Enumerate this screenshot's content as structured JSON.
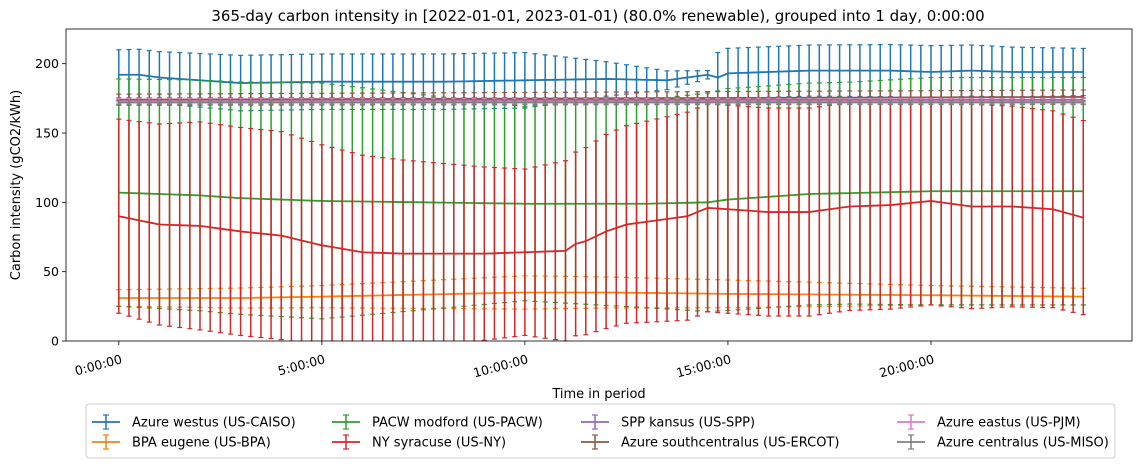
{
  "chart_data": {
    "type": "line",
    "title": "365-day carbon intensity in [2022-01-01, 2023-01-01) (80.0% renewable), grouped into 1 day, 0:00:00",
    "xlabel": "Time in period",
    "ylabel": "Carbon intensity (gCO2/kWh)",
    "xlim_hours": [
      -1.3,
      24.95
    ],
    "ylim": [
      0,
      225
    ],
    "x_tick_labels": [
      "0:00:00",
      "5:00:00",
      "10:00:00",
      "15:00:00",
      "20:00:00"
    ],
    "x_tick_hours": [
      0,
      5,
      10,
      15,
      20
    ],
    "y_ticks": [
      0,
      50,
      100,
      150,
      200
    ],
    "error_bars": true,
    "legend_location": "below plot",
    "x_hours_step": 0.25,
    "series": [
      {
        "name": "Azure westus (US-CAISO)",
        "color": "#1f77b4",
        "anchors": [
          [
            0,
            192
          ],
          [
            0.5,
            192
          ],
          [
            1,
            190
          ],
          [
            1.5,
            189
          ],
          [
            3,
            186
          ],
          [
            5,
            187
          ],
          [
            8,
            187
          ],
          [
            10,
            188
          ],
          [
            12,
            189
          ],
          [
            13.5,
            188
          ],
          [
            14.5,
            192
          ],
          [
            14.75,
            190
          ],
          [
            15,
            193
          ],
          [
            17,
            195
          ],
          [
            19,
            195
          ],
          [
            20,
            194
          ],
          [
            21,
            195
          ],
          [
            22,
            194
          ],
          [
            23,
            194
          ],
          [
            23.75,
            194
          ]
        ],
        "err_anchors": [
          [
            0,
            18
          ],
          [
            3,
            20
          ],
          [
            10,
            20
          ],
          [
            14.5,
            3
          ],
          [
            14.75,
            18
          ],
          [
            20,
            19
          ],
          [
            23.75,
            17
          ]
        ]
      },
      {
        "name": "BPA eugene (US-BPA)",
        "color": "#ff7f0e",
        "anchors": [
          [
            0,
            31
          ],
          [
            3,
            31
          ],
          [
            5,
            32
          ],
          [
            10,
            35
          ],
          [
            12,
            35
          ],
          [
            15,
            34
          ],
          [
            20,
            33
          ],
          [
            23.75,
            32
          ]
        ],
        "err_anchors": [
          [
            0,
            6
          ],
          [
            5,
            8
          ],
          [
            10,
            12
          ],
          [
            15,
            10
          ],
          [
            20,
            7
          ],
          [
            23.75,
            6
          ]
        ]
      },
      {
        "name": "PACW modford (US-PACW)",
        "color": "#2ca02c",
        "anchors": [
          [
            0,
            107
          ],
          [
            1,
            106
          ],
          [
            2,
            105
          ],
          [
            3,
            103
          ],
          [
            5,
            101
          ],
          [
            10,
            99
          ],
          [
            13,
            99
          ],
          [
            14.5,
            100
          ],
          [
            15,
            102
          ],
          [
            17,
            106
          ],
          [
            20,
            108
          ],
          [
            23.75,
            108
          ]
        ],
        "err_anchors": [
          [
            0,
            82
          ],
          [
            5,
            85
          ],
          [
            10,
            70
          ],
          [
            13,
            75
          ],
          [
            15,
            80
          ],
          [
            18,
            80
          ],
          [
            20,
            82
          ],
          [
            23.75,
            82
          ]
        ]
      },
      {
        "name": "NY syracuse (US-NY)",
        "color": "#d62728",
        "anchors": [
          [
            0,
            90
          ],
          [
            0.5,
            87
          ],
          [
            1,
            84
          ],
          [
            2,
            83
          ],
          [
            3,
            79
          ],
          [
            4,
            76
          ],
          [
            5,
            69
          ],
          [
            6,
            64
          ],
          [
            7,
            63
          ],
          [
            9,
            63
          ],
          [
            10,
            64
          ],
          [
            11,
            65
          ],
          [
            11.25,
            70
          ],
          [
            11.5,
            72
          ],
          [
            12,
            79
          ],
          [
            12.5,
            84
          ],
          [
            13,
            86
          ],
          [
            14,
            90
          ],
          [
            14.5,
            96
          ],
          [
            15,
            95
          ],
          [
            16,
            93
          ],
          [
            17,
            93
          ],
          [
            18,
            97
          ],
          [
            19,
            98
          ],
          [
            20,
            101
          ],
          [
            21,
            97
          ],
          [
            22,
            97
          ],
          [
            23,
            95
          ],
          [
            23.75,
            89
          ]
        ],
        "err_anchors": [
          [
            0,
            70
          ],
          [
            2,
            75
          ],
          [
            4,
            75
          ],
          [
            6,
            70
          ],
          [
            10,
            60
          ],
          [
            12,
            70
          ],
          [
            14,
            75
          ],
          [
            16,
            75
          ],
          [
            20,
            75
          ],
          [
            23.75,
            70
          ]
        ]
      },
      {
        "name": "SPP kansus (US-SPP)",
        "color": "#9467bd",
        "anchors": [
          [
            0,
            174
          ],
          [
            23.75,
            174
          ]
        ],
        "err_anchors": [
          [
            0,
            1.5
          ],
          [
            23.75,
            1.5
          ]
        ]
      },
      {
        "name": "Azure southcentralus (US-ERCOT)",
        "color": "#8c564b",
        "anchors": [
          [
            0,
            174
          ],
          [
            12,
            175
          ],
          [
            23.75,
            176
          ]
        ],
        "err_anchors": [
          [
            0,
            4
          ],
          [
            23.75,
            5
          ]
        ]
      },
      {
        "name": "Azure eastus (US-PJM)",
        "color": "#e377c2",
        "anchors": [
          [
            0,
            173
          ],
          [
            23.75,
            173
          ]
        ],
        "err_anchors": [
          [
            0,
            2
          ],
          [
            23.75,
            2
          ]
        ]
      },
      {
        "name": "Azure centralus (US-MISO)",
        "color": "#7f7f7f",
        "anchors": [
          [
            0,
            172
          ],
          [
            23.75,
            172
          ]
        ],
        "err_anchors": [
          [
            0,
            1.5
          ],
          [
            23.75,
            1.5
          ]
        ]
      }
    ]
  }
}
